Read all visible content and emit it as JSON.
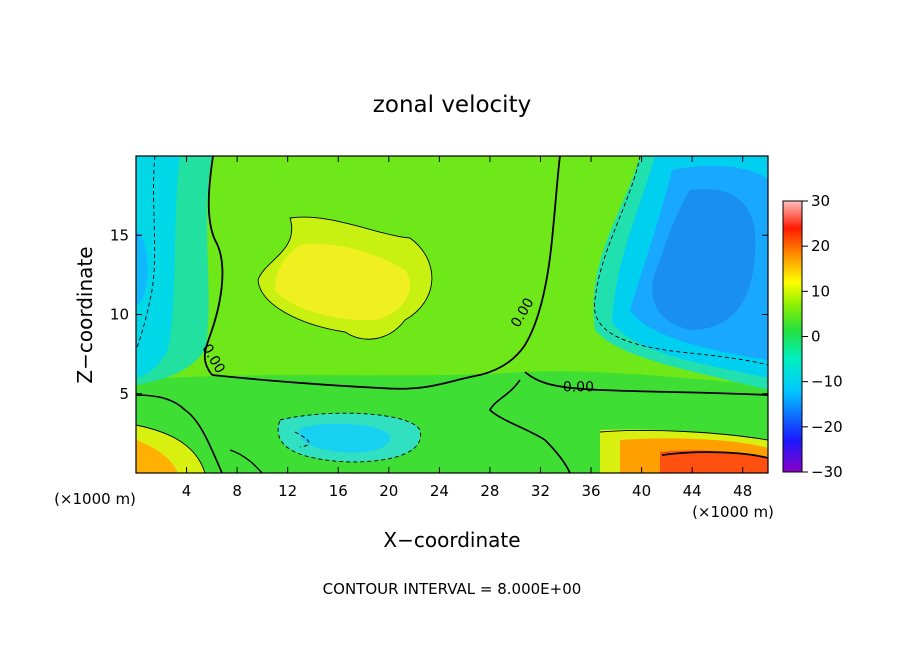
{
  "chart_data": {
    "type": "heatmap",
    "title": "zonal velocity",
    "xlabel": "X−coordinate",
    "ylabel": "Z−coordinate",
    "x_unit_left": "(×1000 m)",
    "x_unit_right": "(×1000 m)",
    "footer": "CONTOUR INTERVAL = 8.000E+00",
    "xlim": [
      0,
      50
    ],
    "ylim": [
      0,
      20
    ],
    "x_ticks": [
      4,
      8,
      12,
      16,
      20,
      24,
      28,
      32,
      36,
      40,
      44,
      48
    ],
    "y_ticks": [
      5,
      10,
      15
    ],
    "colorbar": {
      "range": [
        -30,
        30
      ],
      "ticks": [
        30,
        20,
        10,
        0,
        -10,
        -20,
        -30
      ],
      "tick_labels": [
        "30",
        "20",
        "10",
        "0",
        "−10",
        "−20",
        "−30"
      ]
    },
    "contour_interval": 8,
    "contour_labels": [
      {
        "text": "0.00",
        "x": 6.1,
        "y": 7.2
      },
      {
        "text": "0.00",
        "x": 30.6,
        "y": 10.1
      },
      {
        "text": "0.00",
        "x": 35.0,
        "y": 5.4
      }
    ],
    "features": [
      {
        "kind": "max",
        "x": 16.0,
        "y": 11.0,
        "value": 10
      },
      {
        "kind": "max",
        "x": 47.0,
        "y": 0.6,
        "value": 23
      },
      {
        "kind": "max",
        "x": 1.0,
        "y": 1.0,
        "value": 14
      },
      {
        "kind": "min",
        "x": 45.0,
        "y": 13.0,
        "value": -14
      },
      {
        "kind": "min",
        "x": 1.0,
        "y": 12.5,
        "value": -10
      },
      {
        "kind": "min",
        "x": 16.0,
        "y": 2.0,
        "value": -7
      }
    ]
  }
}
